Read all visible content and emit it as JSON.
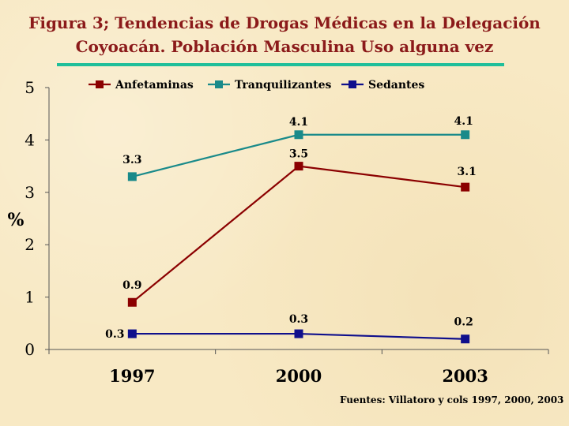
{
  "title_line1": "Figura 3; Tendencias de Drogas Médicas en  la Delegación",
  "title_line2": "Coyoacán. Población Masculina Uso alguna vez",
  "source": "Fuentes: Villatoro y cols 1997, 2000, 2003",
  "colors": {
    "title": "#8b1a1a",
    "rule": "#1fbf9a",
    "Anfetaminas": "#8b0000",
    "Tranquilizantes": "#198a8a",
    "Sedantes": "#0f0f8c"
  },
  "chart_data": {
    "type": "line",
    "title": "Figura 3; Tendencias de Drogas Médicas en  la Delegación Coyoacán. Población Masculina Uso alguna vez",
    "xlabel": "",
    "ylabel": "%",
    "categories": [
      "1997",
      "2000",
      "2003"
    ],
    "ylim": [
      0,
      5
    ],
    "yticks": [
      "0",
      "1",
      "2",
      "3",
      "4",
      "5"
    ],
    "grid": false,
    "legend": "top",
    "series": [
      {
        "name": "Anfetaminas",
        "values": [
          0.9,
          3.5,
          3.1
        ],
        "labels": [
          "0.9",
          "3.5",
          "3.1"
        ]
      },
      {
        "name": "Tranquilizantes",
        "values": [
          3.3,
          4.1,
          4.1
        ],
        "labels": [
          "3.3",
          "4.1",
          "4.1"
        ]
      },
      {
        "name": "Sedantes",
        "values": [
          0.3,
          0.3,
          0.2
        ],
        "labels": [
          "0.3",
          "0.3",
          "0.2"
        ]
      }
    ]
  }
}
